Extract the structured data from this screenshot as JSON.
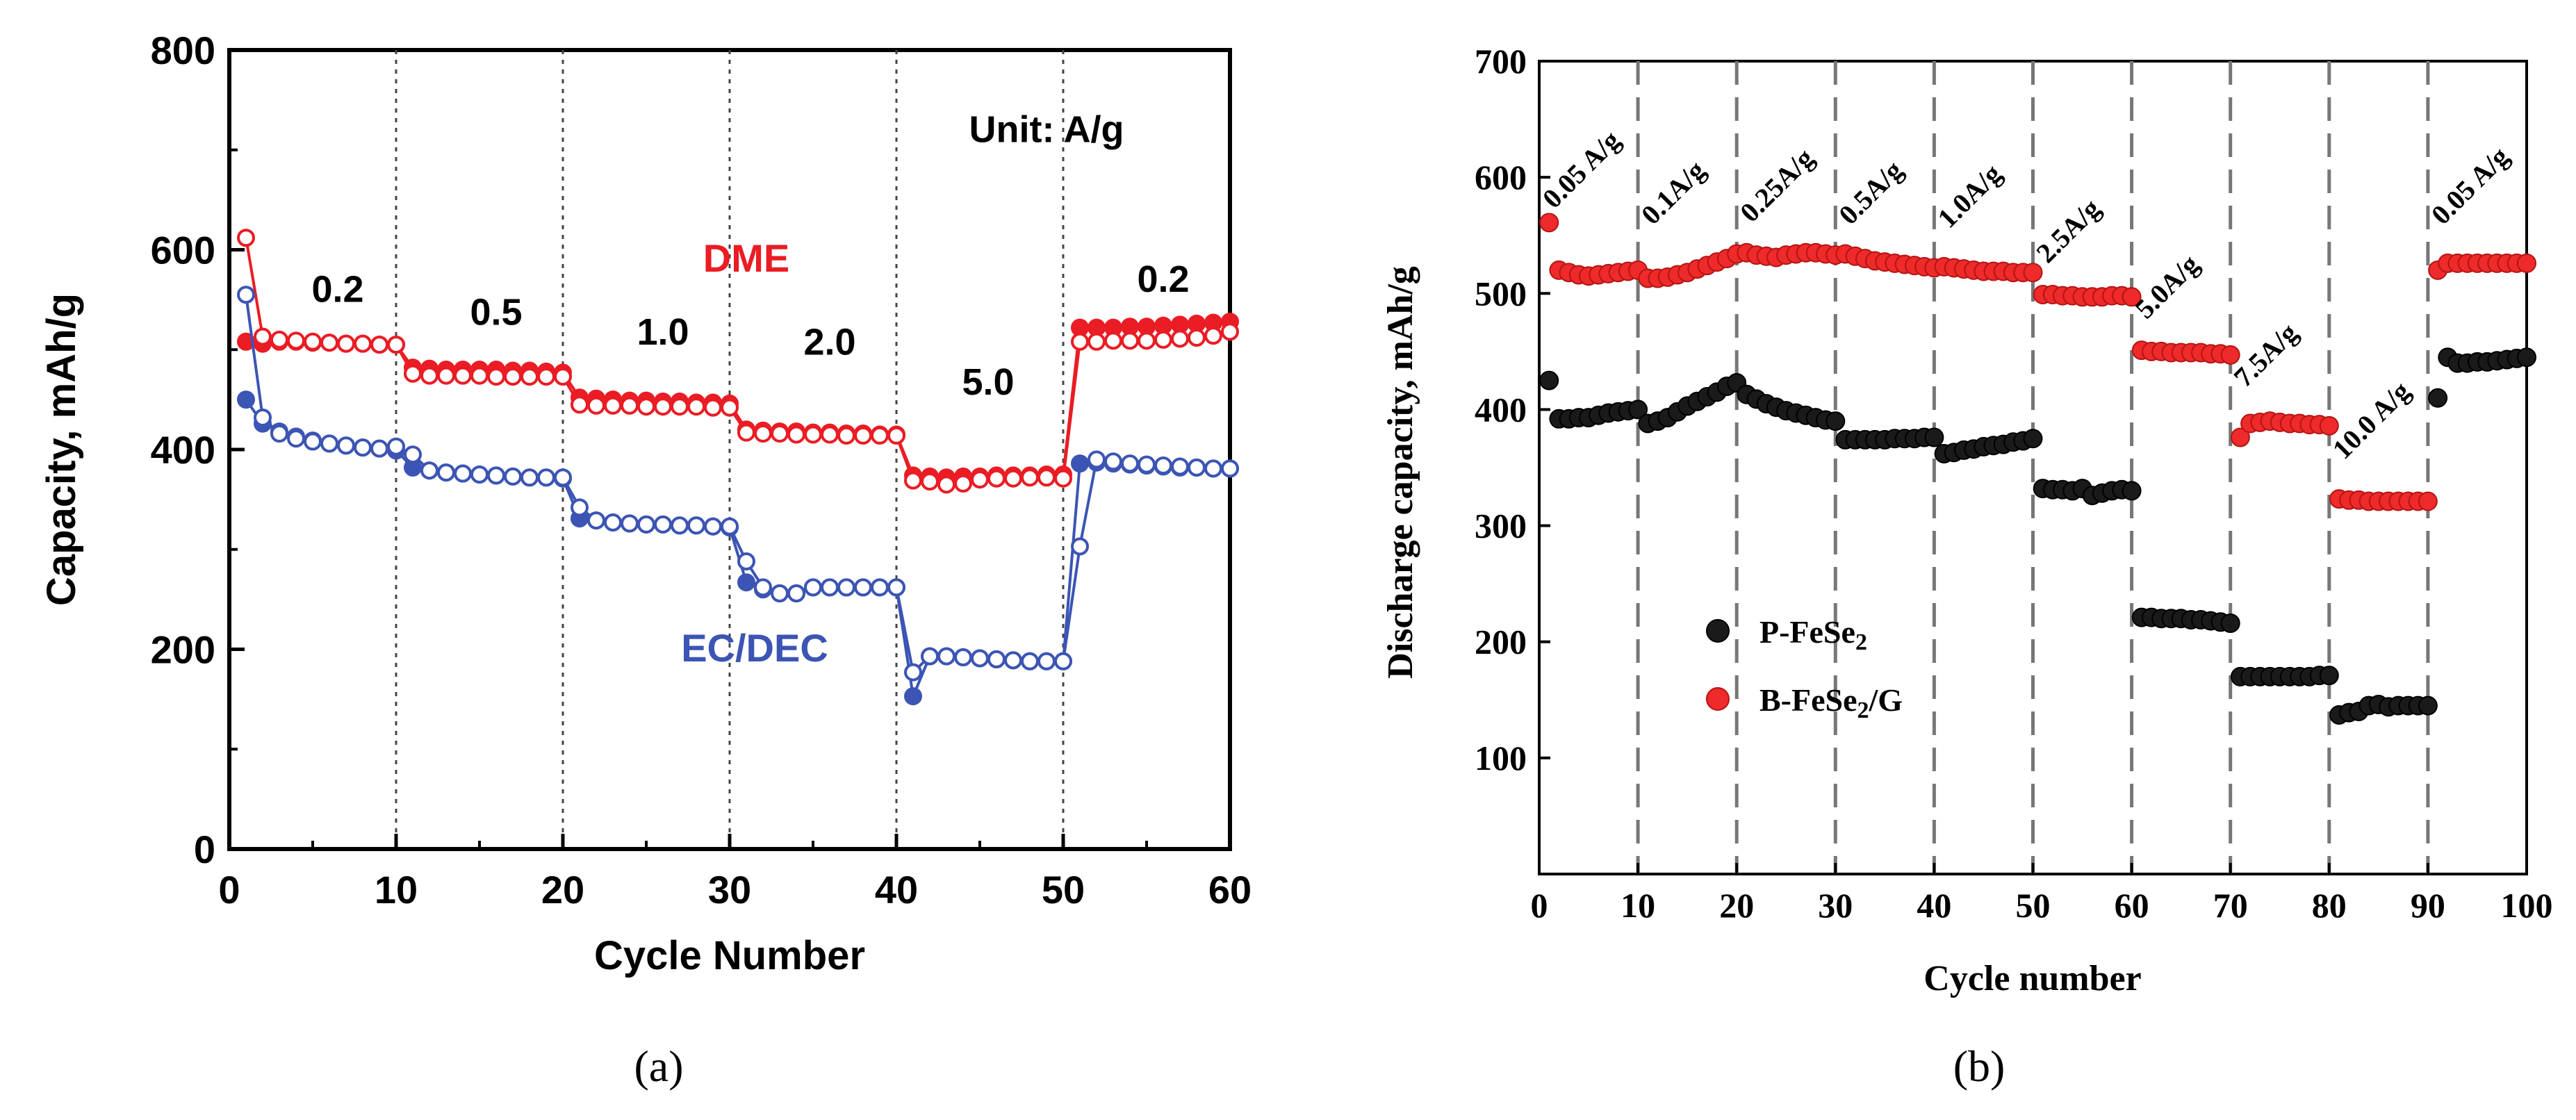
{
  "chart_data": [
    {
      "id": "a",
      "type": "line",
      "panel_label": "(a)",
      "xlabel": "Cycle Number",
      "ylabel": "Capacity, mAh/g",
      "xlim": [
        0,
        60
      ],
      "ylim": [
        0,
        800
      ],
      "xticks": [
        0,
        10,
        20,
        30,
        40,
        50,
        60
      ],
      "yticks": [
        0,
        200,
        400,
        600,
        800
      ],
      "dividers": [
        10,
        20,
        30,
        40,
        50
      ],
      "unit_note": "Unit: A/g",
      "rate_labels": [
        {
          "text": "0.2",
          "x": 6.5,
          "y": 548
        },
        {
          "text": "0.5",
          "x": 16,
          "y": 525
        },
        {
          "text": "1.0",
          "x": 26,
          "y": 505
        },
        {
          "text": "2.0",
          "x": 36,
          "y": 495
        },
        {
          "text": "5.0",
          "x": 45.5,
          "y": 455
        },
        {
          "text": "0.2",
          "x": 56,
          "y": 558
        }
      ],
      "series_labels": [
        {
          "text": "DME",
          "color": "#ea1c24",
          "x": 31,
          "y": 578
        },
        {
          "text": "EC/DEC",
          "color": "#3c55b4",
          "x": 31.5,
          "y": 188
        }
      ],
      "series": [
        {
          "name": "DME charge",
          "color": "#ea1c24",
          "marker": "filled",
          "x": [
            1,
            2,
            3,
            4,
            5,
            6,
            7,
            8,
            9,
            10,
            11,
            12,
            13,
            14,
            15,
            16,
            17,
            18,
            19,
            20,
            21,
            22,
            23,
            24,
            25,
            26,
            27,
            28,
            29,
            30,
            31,
            32,
            33,
            34,
            35,
            36,
            37,
            38,
            39,
            40,
            41,
            42,
            43,
            44,
            45,
            46,
            47,
            48,
            49,
            50,
            51,
            52,
            53,
            54,
            55,
            56,
            57,
            58,
            59,
            60
          ],
          "values": [
            508,
            506,
            508,
            508,
            507,
            507,
            506,
            506,
            505,
            505,
            482,
            481,
            480,
            480,
            480,
            480,
            479,
            479,
            478,
            477,
            452,
            451,
            450,
            449,
            449,
            448,
            448,
            447,
            447,
            446,
            420,
            419,
            418,
            418,
            417,
            417,
            416,
            416,
            415,
            415,
            374,
            373,
            372,
            373,
            373,
            374,
            374,
            374,
            375,
            375,
            522,
            522,
            522,
            523,
            523,
            524,
            525,
            526,
            527,
            528
          ]
        },
        {
          "name": "DME discharge",
          "color": "#ea1c24",
          "marker": "open",
          "x": [
            1,
            2,
            3,
            4,
            5,
            6,
            7,
            8,
            9,
            10,
            11,
            12,
            13,
            14,
            15,
            16,
            17,
            18,
            19,
            20,
            21,
            22,
            23,
            24,
            25,
            26,
            27,
            28,
            29,
            30,
            31,
            32,
            33,
            34,
            35,
            36,
            37,
            38,
            39,
            40,
            41,
            42,
            43,
            44,
            45,
            46,
            47,
            48,
            49,
            50,
            51,
            52,
            53,
            54,
            55,
            56,
            57,
            58,
            59,
            60
          ],
          "values": [
            612,
            513,
            510,
            509,
            508,
            507,
            506,
            506,
            505,
            505,
            476,
            474,
            474,
            474,
            474,
            473,
            473,
            473,
            473,
            473,
            445,
            444,
            444,
            444,
            443,
            443,
            443,
            443,
            442,
            442,
            417,
            416,
            416,
            415,
            415,
            415,
            414,
            414,
            414,
            414,
            369,
            368,
            365,
            366,
            370,
            371,
            371,
            372,
            372,
            371,
            508,
            508,
            509,
            509,
            509,
            510,
            511,
            512,
            514,
            518
          ]
        },
        {
          "name": "EC/DEC charge",
          "color": "#3c55b4",
          "marker": "filled",
          "x": [
            1,
            2,
            3,
            4,
            5,
            6,
            7,
            8,
            9,
            10,
            11,
            12,
            13,
            14,
            15,
            16,
            17,
            18,
            19,
            20,
            21,
            22,
            23,
            24,
            25,
            26,
            27,
            28,
            29,
            30,
            31,
            32,
            33,
            34,
            35,
            36,
            37,
            38,
            39,
            40,
            41,
            42,
            43,
            44,
            45,
            46,
            47,
            48,
            49,
            50,
            51,
            52,
            53,
            54,
            55,
            56,
            57,
            58,
            59,
            60
          ],
          "values": [
            450,
            426,
            418,
            413,
            409,
            406,
            404,
            402,
            401,
            399,
            382,
            379,
            377,
            376,
            375,
            374,
            373,
            372,
            372,
            371,
            331,
            329,
            327,
            326,
            325,
            325,
            324,
            324,
            323,
            322,
            267,
            260,
            256,
            256,
            262,
            262,
            262,
            262,
            262,
            262,
            153,
            193,
            193,
            192,
            191,
            190,
            189,
            188,
            188,
            188,
            386,
            387,
            386,
            385,
            384,
            383,
            382,
            382,
            381,
            381
          ]
        },
        {
          "name": "EC/DEC discharge",
          "color": "#3c55b4",
          "marker": "open",
          "x": [
            1,
            2,
            3,
            4,
            5,
            6,
            7,
            8,
            9,
            10,
            11,
            12,
            13,
            14,
            15,
            16,
            17,
            18,
            19,
            20,
            21,
            22,
            23,
            24,
            25,
            26,
            27,
            28,
            29,
            30,
            31,
            32,
            33,
            34,
            35,
            36,
            37,
            38,
            39,
            40,
            41,
            42,
            43,
            44,
            45,
            46,
            47,
            48,
            49,
            50,
            51,
            52,
            53,
            54,
            55,
            56,
            57,
            58,
            59,
            60
          ],
          "values": [
            555,
            432,
            416,
            411,
            408,
            406,
            404,
            402,
            401,
            403,
            395,
            379,
            377,
            376,
            375,
            374,
            373,
            372,
            372,
            372,
            342,
            329,
            327,
            326,
            325,
            325,
            324,
            324,
            323,
            323,
            288,
            262,
            256,
            256,
            262,
            262,
            262,
            262,
            262,
            262,
            177,
            193,
            193,
            192,
            191,
            190,
            189,
            188,
            188,
            188,
            303,
            390,
            388,
            386,
            385,
            384,
            383,
            382,
            381,
            381
          ]
        }
      ]
    },
    {
      "id": "b",
      "type": "scatter",
      "panel_label": "(b)",
      "xlabel": "Cycle number",
      "ylabel": "Discharge capacity, mAh/g",
      "xlim": [
        0,
        100
      ],
      "ylim": [
        0,
        700
      ],
      "xticks": [
        0,
        10,
        20,
        30,
        40,
        50,
        60,
        70,
        80,
        90,
        100
      ],
      "yticks": [
        100,
        200,
        300,
        400,
        500,
        600,
        700
      ],
      "dividers": [
        10,
        20,
        30,
        40,
        50,
        60,
        70,
        80,
        90
      ],
      "rate_labels": [
        {
          "text": "0.05 A/g",
          "x": 1.5,
          "y": 572
        },
        {
          "text": "0.1A/g",
          "x": 11.5,
          "y": 558
        },
        {
          "text": "0.25A/g",
          "x": 21.5,
          "y": 560
        },
        {
          "text": "0.5A/g",
          "x": 31.5,
          "y": 558
        },
        {
          "text": "1.0A/g",
          "x": 41.5,
          "y": 555
        },
        {
          "text": "2.5A/g",
          "x": 51.5,
          "y": 525
        },
        {
          "text": "5.0A/g",
          "x": 61.5,
          "y": 477
        },
        {
          "text": "7.5A/g",
          "x": 71.5,
          "y": 418
        },
        {
          "text": "10.0 A/g",
          "x": 81.5,
          "y": 356
        },
        {
          "text": "0.05 A/g",
          "x": 91.5,
          "y": 558
        }
      ],
      "legend": {
        "position": "center-left",
        "entries": [
          {
            "name": "P-FeSe",
            "sub": "2",
            "suffix": "",
            "color": "#1a1a1a"
          },
          {
            "name": "B-FeSe",
            "sub": "2",
            "suffix": "/G",
            "color": "#ee2a2a"
          }
        ]
      },
      "series": [
        {
          "name": "P-FeSe2",
          "color": "#1a1a1a",
          "x": [
            1,
            2,
            3,
            4,
            5,
            6,
            7,
            8,
            9,
            10,
            11,
            12,
            13,
            14,
            15,
            16,
            17,
            18,
            19,
            20,
            21,
            22,
            23,
            24,
            25,
            26,
            27,
            28,
            29,
            30,
            31,
            32,
            33,
            34,
            35,
            36,
            37,
            38,
            39,
            40,
            41,
            42,
            43,
            44,
            45,
            46,
            47,
            48,
            49,
            50,
            51,
            52,
            53,
            54,
            55,
            56,
            57,
            58,
            59,
            60,
            61,
            62,
            63,
            64,
            65,
            66,
            67,
            68,
            69,
            70,
            71,
            72,
            73,
            74,
            75,
            76,
            77,
            78,
            79,
            80,
            81,
            82,
            83,
            84,
            85,
            86,
            87,
            88,
            89,
            90,
            91,
            92,
            93,
            94,
            95,
            96,
            97,
            98,
            99,
            100
          ],
          "values": [
            425,
            392,
            392,
            393,
            393,
            395,
            397,
            398,
            399,
            400,
            388,
            390,
            393,
            398,
            403,
            407,
            411,
            415,
            420,
            423,
            413,
            409,
            405,
            402,
            399,
            397,
            395,
            393,
            391,
            390,
            374,
            374,
            374,
            374,
            374,
            375,
            375,
            375,
            376,
            376,
            362,
            363,
            365,
            366,
            368,
            369,
            370,
            372,
            373,
            375,
            332,
            331,
            331,
            330,
            332,
            326,
            328,
            330,
            331,
            330,
            221,
            221,
            220,
            220,
            220,
            219,
            219,
            218,
            217,
            216,
            170,
            170,
            170,
            170,
            170,
            170,
            170,
            170,
            171,
            171,
            137,
            139,
            140,
            145,
            146,
            144,
            145,
            145,
            145,
            145,
            410,
            445,
            440,
            440,
            441,
            441,
            442,
            443,
            444,
            445
          ]
        },
        {
          "name": "B-FeSe2/G",
          "color": "#ee2a2a",
          "x": [
            1,
            2,
            3,
            4,
            5,
            6,
            7,
            8,
            9,
            10,
            11,
            12,
            13,
            14,
            15,
            16,
            17,
            18,
            19,
            20,
            21,
            22,
            23,
            24,
            25,
            26,
            27,
            28,
            29,
            30,
            31,
            32,
            33,
            34,
            35,
            36,
            37,
            38,
            39,
            40,
            41,
            42,
            43,
            44,
            45,
            46,
            47,
            48,
            49,
            50,
            51,
            52,
            53,
            54,
            55,
            56,
            57,
            58,
            59,
            60,
            61,
            62,
            63,
            64,
            65,
            66,
            67,
            68,
            69,
            70,
            71,
            72,
            73,
            74,
            75,
            76,
            77,
            78,
            79,
            80,
            81,
            82,
            83,
            84,
            85,
            86,
            87,
            88,
            89,
            90,
            91,
            92,
            93,
            94,
            95,
            96,
            97,
            98,
            99,
            100
          ],
          "values": [
            561,
            520,
            518,
            516,
            515,
            516,
            517,
            518,
            519,
            520,
            513,
            513,
            514,
            516,
            518,
            521,
            524,
            527,
            530,
            534,
            535,
            533,
            532,
            531,
            533,
            534,
            535,
            535,
            534,
            533,
            534,
            532,
            530,
            528,
            527,
            526,
            525,
            524,
            523,
            522,
            523,
            522,
            521,
            520,
            519,
            519,
            519,
            518,
            518,
            518,
            499,
            499,
            498,
            498,
            497,
            497,
            497,
            498,
            498,
            497,
            451,
            450,
            450,
            449,
            449,
            449,
            449,
            448,
            448,
            447,
            376,
            388,
            389,
            390,
            389,
            388,
            388,
            387,
            387,
            386,
            323,
            322,
            322,
            321,
            321,
            321,
            321,
            321,
            321,
            321,
            520,
            526,
            526,
            526,
            526,
            526,
            526,
            526,
            526,
            526
          ]
        }
      ]
    }
  ]
}
